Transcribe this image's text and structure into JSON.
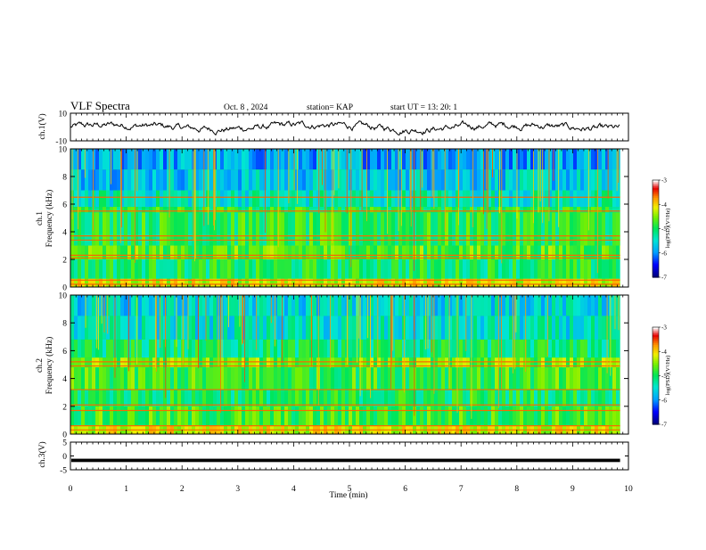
{
  "header": {
    "title": "VLF Spectra",
    "date": "Oct. 8 , 2024",
    "station": "station= KAP",
    "start": "start UT = 13: 20: 1"
  },
  "chart_data": [
    {
      "type": "line",
      "panel": "ch1_waveform",
      "ylabel": "ch.1(V)",
      "yticks": [
        "10",
        "-10"
      ],
      "ylim": [
        -10,
        10
      ],
      "xlim": [
        0,
        9.85
      ],
      "description_of_values": "noisy waveform oscillating roughly between -5 and 5 V"
    },
    {
      "type": "heatmap",
      "panel": "ch1_spectrogram",
      "ylabel": "ch.1\nFrequency (kHz)",
      "ylabel_line1": "ch.1",
      "ylabel_line2": "Frequency (kHz)",
      "yticks": [
        "0",
        "2",
        "4",
        "6",
        "8",
        "10"
      ],
      "ylim": [
        0,
        10
      ],
      "xlim": [
        0,
        9.85
      ],
      "colorbar": {
        "label": "log(PSD)(V²/Hz)",
        "ticks": [
          "-3",
          "-4",
          "-5",
          "-6",
          "-7"
        ],
        "range": [
          -7,
          -3
        ]
      },
      "bands": [
        {
          "freq": [
            8.5,
            10.0
          ],
          "level": -5.9
        },
        {
          "freq": [
            7.0,
            8.5
          ],
          "level": -5.7
        },
        {
          "freq": [
            5.8,
            7.0
          ],
          "level": -5.4
        },
        {
          "freq": [
            5.4,
            5.8
          ],
          "level": -4.9
        },
        {
          "freq": [
            3.0,
            5.4
          ],
          "level": -4.9
        },
        {
          "freq": [
            2.0,
            3.0
          ],
          "level": -4.7
        },
        {
          "freq": [
            0.6,
            2.0
          ],
          "level": -5.0
        },
        {
          "freq": [
            0.0,
            0.6
          ],
          "level": -4.2
        }
      ],
      "lines_khz": [
        0.2,
        0.5,
        2.1,
        2.3,
        3.4,
        3.7,
        5.5,
        6.5
      ]
    },
    {
      "type": "heatmap",
      "panel": "ch2_spectrogram",
      "ylabel_line1": "ch.2",
      "ylabel_line2": "Frequency (kHz)",
      "yticks": [
        "0",
        "2",
        "4",
        "6",
        "8",
        "10"
      ],
      "ylim": [
        0,
        10
      ],
      "xlim": [
        0,
        9.85
      ],
      "colorbar": {
        "label": "log(PSD)(V²/Hz)",
        "ticks": [
          "-3",
          "-4",
          "-5",
          "-6",
          "-7"
        ],
        "range": [
          -7,
          -3
        ]
      },
      "bands": [
        {
          "freq": [
            8.5,
            10.0
          ],
          "level": -5.6
        },
        {
          "freq": [
            6.8,
            8.5
          ],
          "level": -5.5
        },
        {
          "freq": [
            5.5,
            6.8
          ],
          "level": -5.1
        },
        {
          "freq": [
            4.8,
            5.5
          ],
          "level": -4.6
        },
        {
          "freq": [
            3.2,
            4.8
          ],
          "level": -4.8
        },
        {
          "freq": [
            2.0,
            3.2
          ],
          "level": -5.0
        },
        {
          "freq": [
            0.6,
            2.0
          ],
          "level": -4.8
        },
        {
          "freq": [
            0.0,
            0.6
          ],
          "level": -4.2
        }
      ],
      "lines_khz": [
        0.3,
        0.6,
        1.7,
        2.1,
        3.2,
        4.9,
        5.2
      ]
    },
    {
      "type": "line",
      "panel": "ch3_waveform",
      "ylabel": "ch.3(V)",
      "yticks": [
        "5",
        "0",
        "-5"
      ],
      "ylim": [
        -5,
        5
      ],
      "xlim": [
        0,
        9.85
      ],
      "xlabel": "Time (min)",
      "xticks": [
        "0",
        "1",
        "2",
        "3",
        "4",
        "5",
        "6",
        "7",
        "8",
        "9",
        "10"
      ],
      "description_of_values": "flat thick trace near -1.5 V"
    }
  ]
}
